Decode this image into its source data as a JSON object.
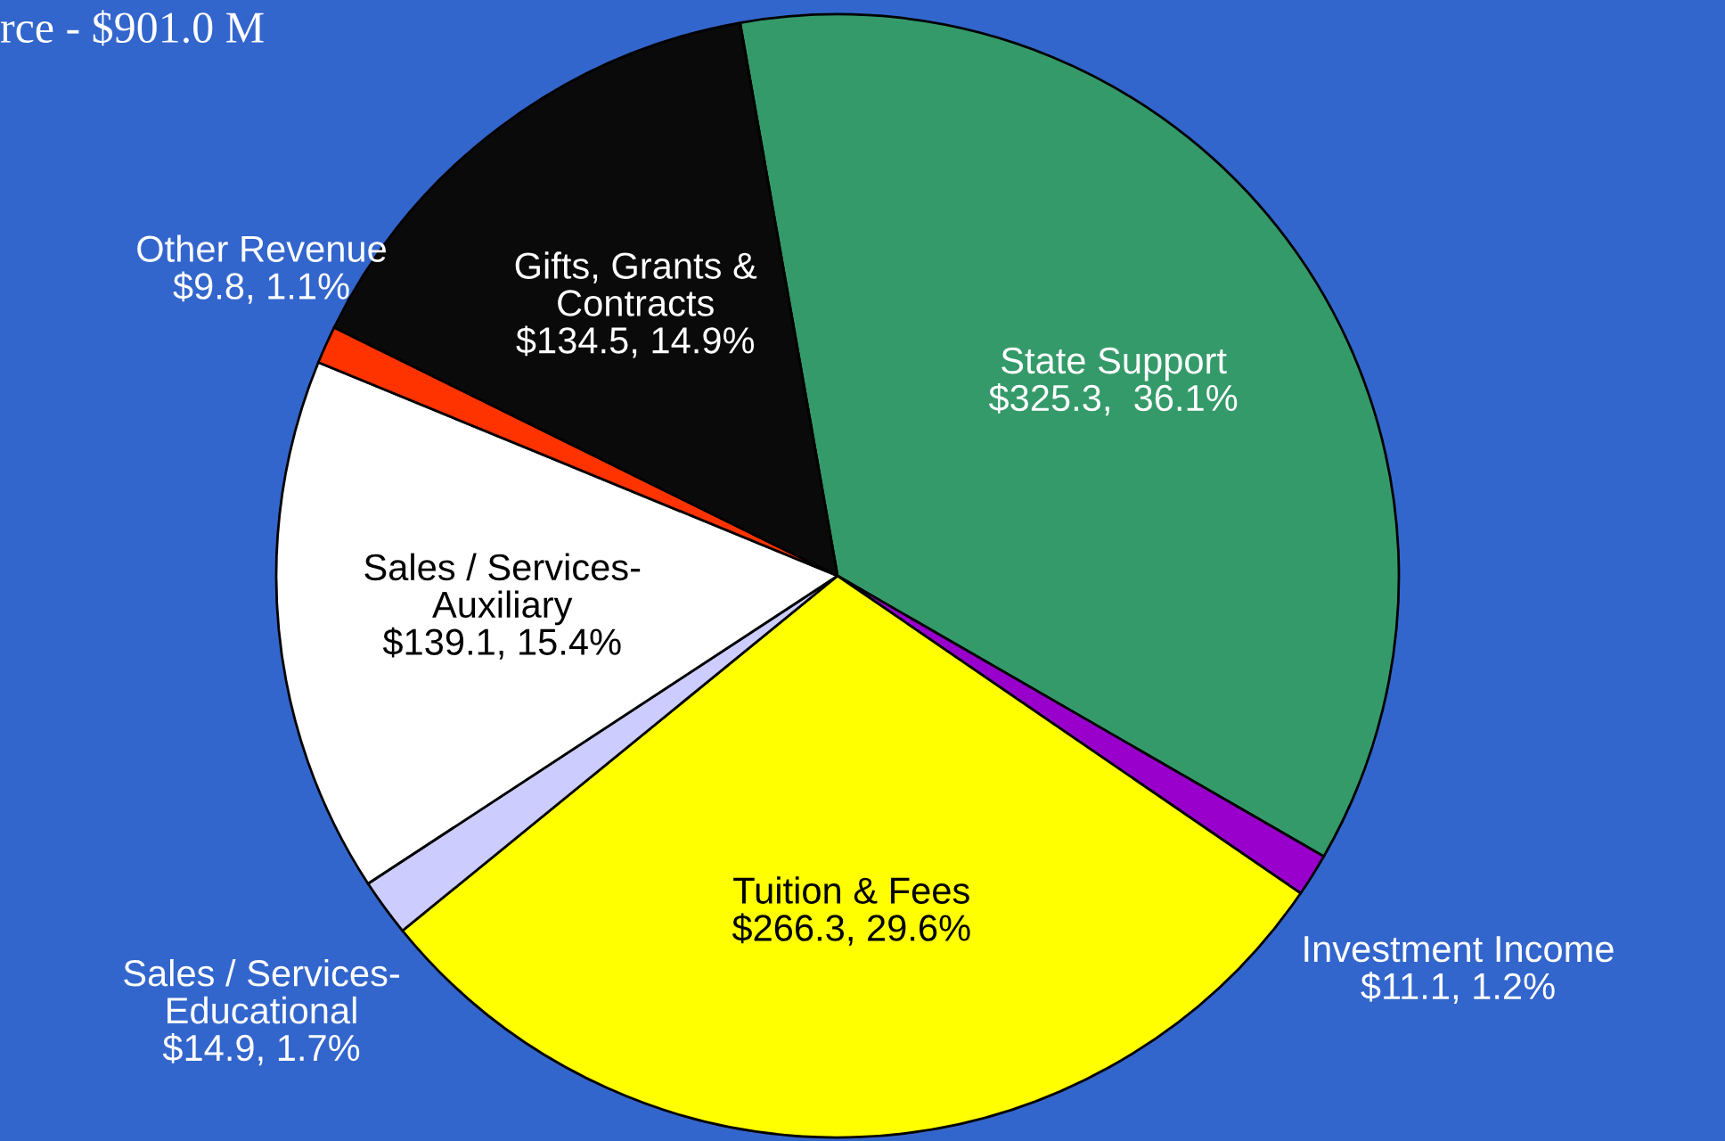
{
  "chart_data": {
    "type": "pie",
    "title": "rce - $901.0 M",
    "categories": [
      "State Support",
      "Investment Income",
      "Tuition & Fees",
      "Sales / Services-\nEducational",
      "Sales / Services-\nAuxiliary",
      "Other Revenue",
      "Gifts, Grants &\nContracts"
    ],
    "values": [
      325.3,
      11.1,
      266.3,
      14.9,
      139.1,
      9.8,
      134.5
    ],
    "value_labels": [
      "$325.3,  36.1%",
      "$11.1, 1.2%",
      "$266.3, 29.6%",
      "$14.9, 1.7%",
      "$139.1, 15.4%",
      "$9.8, 1.1%",
      "$134.5, 14.9%"
    ],
    "colors": [
      "#359a6a",
      "#9900cc",
      "#ffff00",
      "#ccccff",
      "#ffffff",
      "#ff3300",
      "#0a0a0a"
    ],
    "legend": false
  }
}
